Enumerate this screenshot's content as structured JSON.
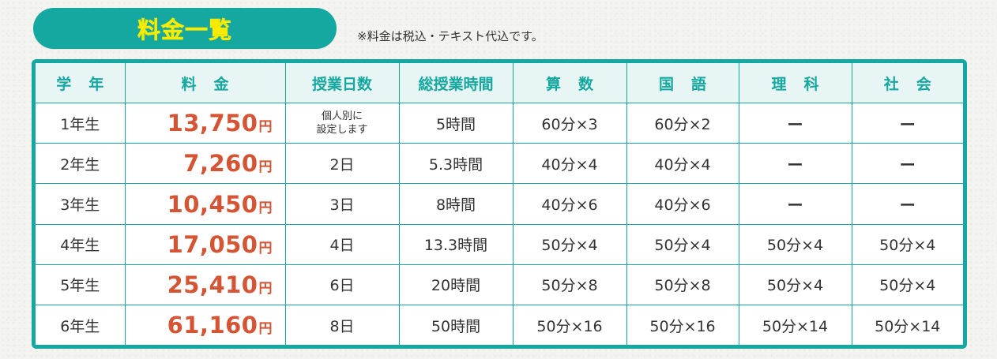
{
  "header": {
    "title": "料金一覧",
    "note": "※料金は税込・テキスト代込です。"
  },
  "table": {
    "headers": [
      "学年",
      "料金",
      "授業日数",
      "総授業時間",
      "算数",
      "国語",
      "理科",
      "社会"
    ],
    "rows": [
      {
        "grade": "1年生",
        "price": "13,750",
        "yen": "円",
        "days_line1": "個人別に",
        "days_line2": "設定します",
        "hours": "5時間",
        "math": "60分×3",
        "japanese": "60分×2",
        "science": "ー",
        "social": "ー"
      },
      {
        "grade": "2年生",
        "price": "7,260",
        "yen": "円",
        "days": "2日",
        "hours": "5.3時間",
        "math": "40分×4",
        "japanese": "40分×4",
        "science": "ー",
        "social": "ー"
      },
      {
        "grade": "3年生",
        "price": "10,450",
        "yen": "円",
        "days": "3日",
        "hours": "8時間",
        "math": "40分×6",
        "japanese": "40分×6",
        "science": "ー",
        "social": "ー"
      },
      {
        "grade": "4年生",
        "price": "17,050",
        "yen": "円",
        "days": "4日",
        "hours": "13.3時間",
        "math": "50分×4",
        "japanese": "50分×4",
        "science": "50分×4",
        "social": "50分×4"
      },
      {
        "grade": "5年生",
        "price": "25,410",
        "yen": "円",
        "days": "6日",
        "hours": "20時間",
        "math": "50分×8",
        "japanese": "50分×8",
        "science": "50分×4",
        "social": "50分×4"
      },
      {
        "grade": "6年生",
        "price": "61,160",
        "yen": "円",
        "days": "8日",
        "hours": "50時間",
        "math": "50分×16",
        "japanese": "50分×16",
        "science": "50分×14",
        "social": "50分×14"
      }
    ]
  },
  "colors": {
    "accent": "#15a8a0",
    "title_text": "#fff000",
    "price": "#d45433",
    "header_bg": "#e7f5f4"
  }
}
